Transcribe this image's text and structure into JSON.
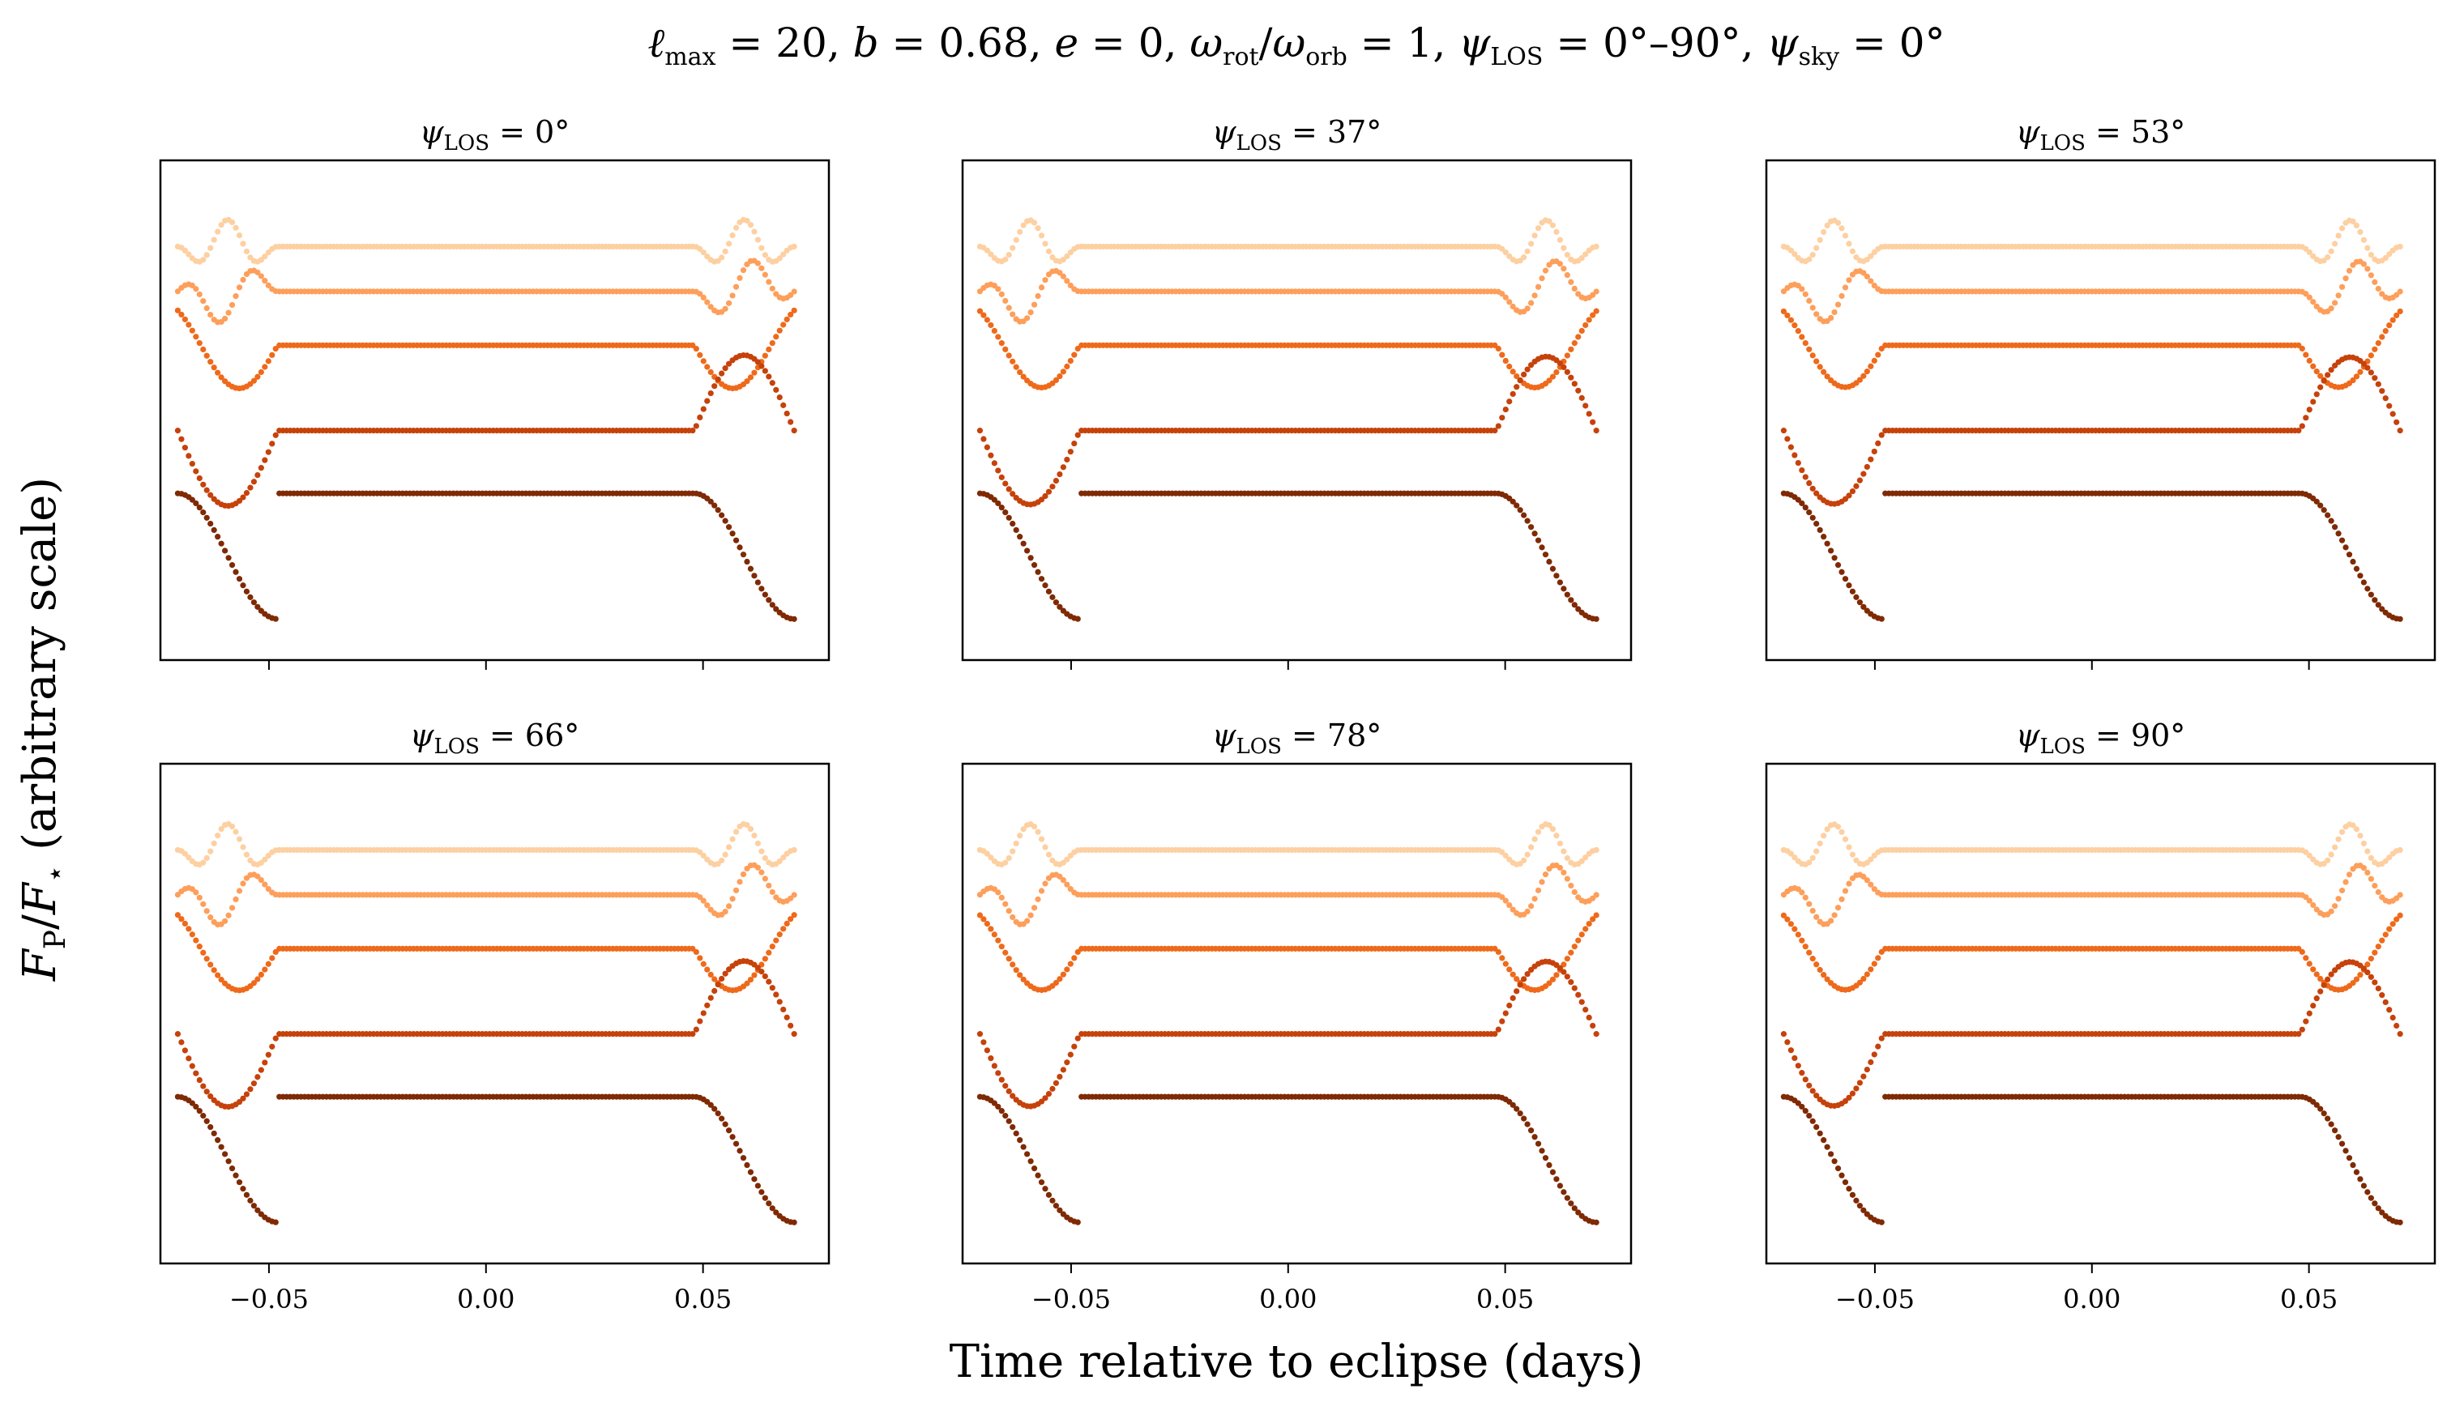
{
  "chart_data": {
    "type": "scatter",
    "suptitle": {
      "lmax": "20",
      "b": "0.68",
      "e": "0",
      "omega_ratio": "1",
      "psi_los_range": "0°–90°",
      "psi_sky": "0°"
    },
    "xlabel": "Time relative to eclipse (days)",
    "ylabel": "F_P/F_⋆ (arbitrary scale)",
    "xlim": [
      -0.075,
      0.079
    ],
    "x_ticks": [
      -0.05,
      0.0,
      0.05
    ],
    "x_tick_labels": [
      "−0.05",
      "0.00",
      "0.05"
    ],
    "y_ticks_shown": false,
    "layout": {
      "rows": 2,
      "cols": 3
    },
    "x_range_data": [
      -0.071,
      0.071
    ],
    "eclipse_egress_ingress": {
      "t1": -0.071,
      "t2": -0.048,
      "t3": 0.048,
      "t4": 0.071
    },
    "series_colors": [
      "#fdd0a2",
      "#fd9f5b",
      "#ee6a1b",
      "#c6420b",
      "#7f2a04"
    ],
    "panels": [
      {
        "psi_los_label": "0°",
        "psi_los": 0
      },
      {
        "psi_los_label": "37°",
        "psi_los": 37
      },
      {
        "psi_los_label": "53°",
        "psi_los": 53
      },
      {
        "psi_los_label": "66°",
        "psi_los": 66
      },
      {
        "psi_los_label": "78°",
        "psi_los": 78
      },
      {
        "psi_los_label": "90°",
        "psi_los": 90
      }
    ]
  }
}
